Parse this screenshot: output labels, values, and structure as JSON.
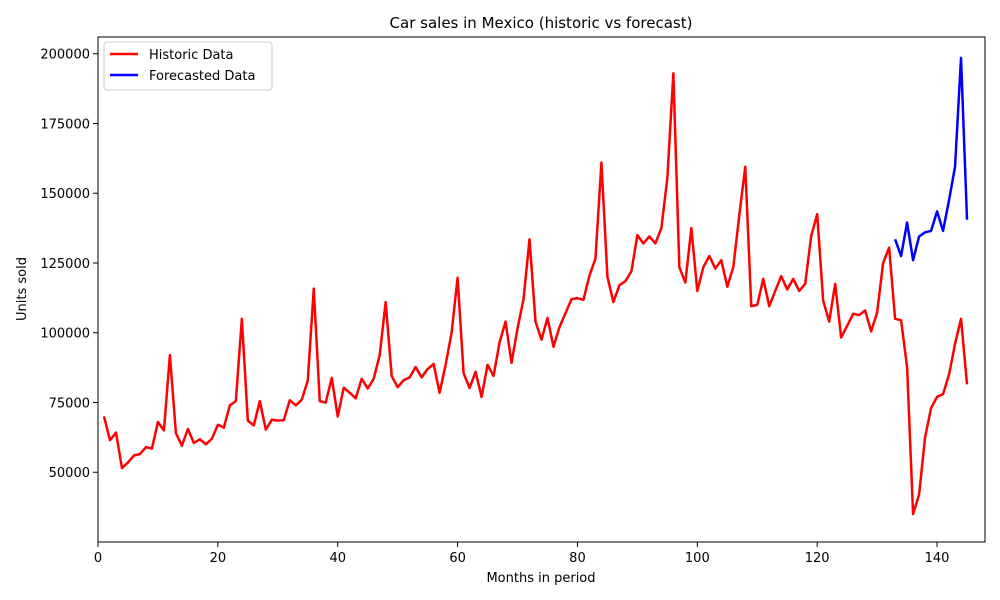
{
  "chart_data": {
    "type": "line",
    "title": "Car sales in Mexico (historic vs forecast)",
    "xlabel": "Months in period",
    "ylabel": "Units sold",
    "xlim": [
      0,
      148
    ],
    "ylim": [
      25000,
      206000
    ],
    "xticks": [
      0,
      20,
      40,
      60,
      80,
      100,
      120,
      140
    ],
    "yticks": [
      50000,
      75000,
      100000,
      125000,
      150000,
      175000,
      200000
    ],
    "legend": "top-left",
    "grid": false,
    "series": [
      {
        "name": "Historic Data",
        "color": "#ff0000",
        "x_start": 1,
        "values": [
          70000,
          61500,
          64200,
          51500,
          53500,
          56000,
          56500,
          59000,
          58500,
          68000,
          65000,
          92000,
          64000,
          59500,
          65500,
          60500,
          61800,
          60000,
          62000,
          67000,
          66000,
          74000,
          75500,
          105000,
          68500,
          66800,
          75500,
          65300,
          68800,
          68500,
          68700,
          75800,
          74000,
          76000,
          82800,
          115800,
          75500,
          75000,
          83800,
          70000,
          80300,
          78500,
          76500,
          83500,
          80000,
          83500,
          92000,
          111000,
          84500,
          80500,
          83000,
          84000,
          87700,
          84000,
          87000,
          88800,
          78500,
          88500,
          100000,
          119700,
          85500,
          80200,
          86000,
          77000,
          88500,
          84500,
          96500,
          104000,
          89200,
          101500,
          112000,
          133500,
          104000,
          97500,
          105300,
          95000,
          102000,
          107000,
          112000,
          112400,
          111800,
          120500,
          126500,
          161000,
          120000,
          111000,
          117000,
          118500,
          122000,
          135000,
          132000,
          134500,
          132000,
          137500,
          155500,
          193000,
          123500,
          118000,
          137500,
          115000,
          123500,
          127500,
          123000,
          126000,
          116500,
          123500,
          142000,
          159500,
          109500,
          110000,
          119300,
          109500,
          115000,
          120300,
          115500,
          119300,
          115000,
          117500,
          134700,
          142500,
          111500,
          104000,
          117500,
          98300,
          102500,
          106800,
          106300,
          108000,
          100500,
          107200,
          125000,
          130500,
          105000,
          104500,
          87700,
          35000,
          42000,
          62500,
          73000,
          77000,
          78000,
          85000,
          96000,
          105000,
          81500
        ]
      },
      {
        "name": "Forecasted Data",
        "color": "#0000ff",
        "x_start": 133,
        "values": [
          133500,
          127500,
          139500,
          126000,
          134500,
          136000,
          136500,
          143500,
          136500,
          147500,
          159500,
          198500,
          140500
        ]
      }
    ]
  }
}
